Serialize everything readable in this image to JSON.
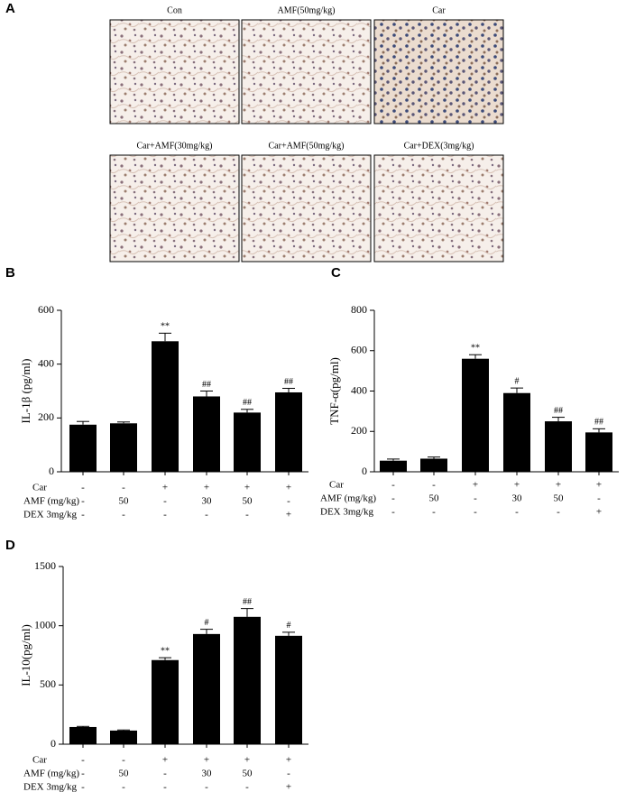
{
  "figure": {
    "panel_a": {
      "label": "A",
      "images": [
        "Con",
        "AMF(50mg/kg)",
        "Car",
        "Car+AMF(30mg/kg)",
        "Car+AMF(50mg/kg)",
        "Car+DEX(3mg/kg)"
      ]
    }
  },
  "chart_data": [
    {
      "type": "bar",
      "panel": "B",
      "y_label": "IL-1β (pg/ml)",
      "color": "#000000",
      "values": [
        175,
        180,
        485,
        280,
        220,
        295
      ],
      "errors": [
        12,
        5,
        30,
        20,
        12,
        15
      ],
      "annotations": [
        null,
        null,
        "**",
        "##",
        "##",
        "##"
      ],
      "ylim": [
        0,
        600
      ],
      "yticks": [
        0,
        200,
        400,
        600
      ],
      "treatment_rows": [
        {
          "label": "Car",
          "cells": [
            "-",
            "-",
            "+",
            "+",
            "+",
            "+"
          ]
        },
        {
          "label": "AMF (mg/kg)",
          "cells": [
            "-",
            "50",
            "-",
            "30",
            "50",
            "-"
          ]
        },
        {
          "label": "DEX 3mg/kg",
          "cells": [
            "-",
            "-",
            "-",
            "-",
            "-",
            "+"
          ]
        }
      ]
    },
    {
      "type": "bar",
      "panel": "C",
      "y_label": "TNF-α(pg/ml)",
      "color": "#000000",
      "values": [
        55,
        65,
        560,
        390,
        250,
        195
      ],
      "errors": [
        8,
        8,
        20,
        25,
        20,
        18
      ],
      "annotations": [
        null,
        null,
        "**",
        "#",
        "##",
        "##"
      ],
      "ylim": [
        0,
        800
      ],
      "yticks": [
        0,
        200,
        400,
        600,
        800
      ],
      "treatment_rows": [
        {
          "label": "Car",
          "cells": [
            "-",
            "-",
            "+",
            "+",
            "+",
            "+"
          ]
        },
        {
          "label": "AMF (mg/kg)",
          "cells": [
            "-",
            "50",
            "-",
            "30",
            "50",
            "-"
          ]
        },
        {
          "label": "DEX 3mg/kg",
          "cells": [
            "-",
            "-",
            "-",
            "-",
            "-",
            "+"
          ]
        }
      ]
    },
    {
      "type": "bar",
      "panel": "D",
      "y_label": "IL-10(pg/ml)",
      "color": "#000000",
      "values": [
        145,
        115,
        710,
        930,
        1075,
        915
      ],
      "errors": [
        5,
        5,
        20,
        40,
        70,
        30
      ],
      "annotations": [
        null,
        null,
        "**",
        "#",
        "##",
        "#"
      ],
      "ylim": [
        0,
        1500
      ],
      "yticks": [
        0,
        500,
        1000,
        1500
      ],
      "treatment_rows": [
        {
          "label": "Car",
          "cells": [
            "-",
            "-",
            "+",
            "+",
            "+",
            "+"
          ]
        },
        {
          "label": "AMF (mg/kg)",
          "cells": [
            "-",
            "50",
            "-",
            "30",
            "50",
            "-"
          ]
        },
        {
          "label": "DEX 3mg/kg",
          "cells": [
            "-",
            "-",
            "-",
            "-",
            "-",
            "+"
          ]
        }
      ]
    }
  ]
}
